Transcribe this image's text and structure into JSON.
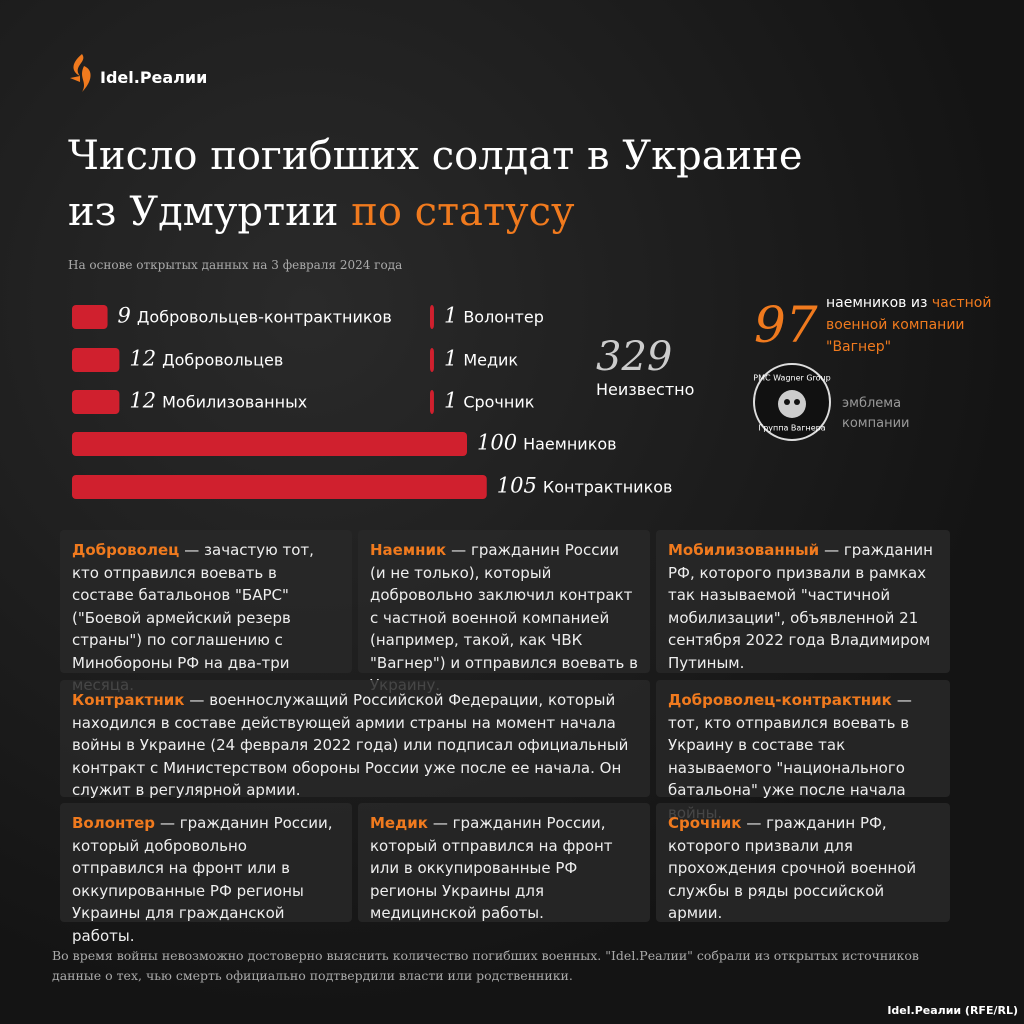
{
  "header": {
    "brand": "Idel.Реалии",
    "title_line1": "Число погибших солдат в Украине",
    "title_line2": "из Удмуртии",
    "title_accent": "по статусу",
    "subtitle": "На основе открытых данных на 3 февраля 2024 года"
  },
  "chart_data": {
    "type": "bar",
    "categories": [
      "Добровольцев-контрактников",
      "Добровольцев",
      "Мобилизованных",
      "Наемников",
      "Контрактников",
      "Волонтер",
      "Медик",
      "Срочник"
    ],
    "values": [
      9,
      12,
      12,
      100,
      105,
      1,
      1,
      1
    ],
    "color": "#d0202e"
  },
  "unknown": {
    "value": 329,
    "label": "Неизвестно"
  },
  "wagner": {
    "value": 97,
    "text_before": "наемников из",
    "text_accent": "частной военной компании",
    "text_after": "\"Вагнер\"",
    "emblem_top": "PMC Wagner Group",
    "emblem_bottom": "Группа Вагнера",
    "emblem_caption": "эмблема компании"
  },
  "definitions": [
    {
      "term": "Доброволец",
      "text": "— зачастую тот, кто отправился воевать в составе батальонов \"БАРС\" (\"Боевой армейский резерв страны\") по соглашению с Минобороны РФ на два-три месяца."
    },
    {
      "term": "Наемник",
      "text": "— гражданин России (и не только), который добровольно заключил контракт с частной военной компанией (например, такой, как ЧВК \"Вагнер\") и отправился воевать в Украину."
    },
    {
      "term": "Мобилизованный",
      "text": "— гражданин РФ, которого призвали в рамках так называемой \"частичной мобилизации\", объявленной 21 сентября 2022 года Владимиром Путиным."
    },
    {
      "term": "Контрактник",
      "text": "— военнослужащий Российской Федерации, который находился в составе действующей армии страны на момент начала войны в Украине (24 февраля 2022 года) или подписал официальный контракт с Министерством обороны России уже после ее начала. Он служит в регулярной армии."
    },
    {
      "term": "Доброволец-контрактник",
      "text": "— тот, кто отправился воевать в Украину в составе так называемого \"национального батальона\" уже после начала войны."
    },
    {
      "term": "Волонтер",
      "text": "— гражданин России, который добровольно отправился на фронт или в оккупированные РФ регионы Украины для гражданской работы."
    },
    {
      "term": "Медик",
      "text": "— гражданин России, который отправился на фронт или в оккупированные РФ регионы Украины для медицинской работы."
    },
    {
      "term": "Срочник",
      "text": "— гражданин РФ, которого призвали для прохождения срочной военной службы в ряды российской армии."
    }
  ],
  "footer": {
    "note": "Во время войны невозможно достоверно выяснить количество погибших военных. \"Idel.Реалии\" собрали из открытых источников данные о тех, чью смерть официально подтвердили власти или родственники.",
    "credit": "Idel.Реалии (RFE/RL)"
  }
}
